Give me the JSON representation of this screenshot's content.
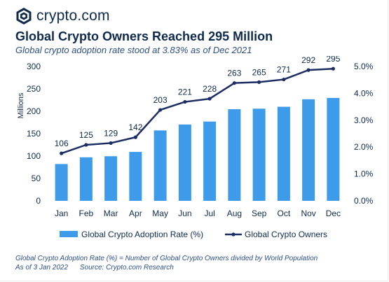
{
  "brand": {
    "name": "crypto.com",
    "icon": "crypto-com-shield-logo"
  },
  "header": {
    "title": "Global Crypto Owners Reached 295 Million",
    "subtitle": "Global crypto adoption rate stood at 3.83% as of Dec 2021"
  },
  "footer": {
    "note": "Global Crypto Adoption Rate (%) = Number of Global Crypto Owners divided by World Population",
    "as_of": "As of 3 Jan 2022",
    "source": "Source: Crypto.com Research"
  },
  "colors": {
    "bar": "#3d9be9",
    "line": "#1b2d63",
    "text": "#0e2a4d",
    "accent": "#2d4f86"
  },
  "chart_data": {
    "type": "bar",
    "categories": [
      "Jan",
      "Feb",
      "Mar",
      "Apr",
      "May",
      "Jun",
      "Jul",
      "Aug",
      "Sep",
      "Oct",
      "Nov",
      "Dec"
    ],
    "series": [
      {
        "name": "Global Crypto Adoption Rate (%)",
        "type": "bar",
        "axis": "right",
        "values": [
          1.37,
          1.62,
          1.66,
          1.82,
          2.62,
          2.84,
          2.95,
          3.41,
          3.43,
          3.5,
          3.78,
          3.83
        ]
      },
      {
        "name": "Global Crypto Owners",
        "type": "line",
        "axis": "left",
        "values": [
          106,
          125,
          129,
          142,
          203,
          221,
          228,
          263,
          265,
          271,
          292,
          295
        ],
        "data_labels": [
          "106",
          "125",
          "129",
          "142",
          "203",
          "221",
          "228",
          "263",
          "265",
          "271",
          "292",
          "295"
        ]
      }
    ],
    "ylabel": "Millions",
    "ylim": [
      0,
      300
    ],
    "yticks": [
      "0",
      "50",
      "100",
      "150",
      "200",
      "250",
      "300"
    ],
    "y2lim": [
      0,
      5
    ],
    "y2ticks": [
      "0.0%",
      "1.0%",
      "2.0%",
      "3.0%",
      "4.0%",
      "5.0%"
    ],
    "grid": false,
    "legend_position": "bottom"
  }
}
